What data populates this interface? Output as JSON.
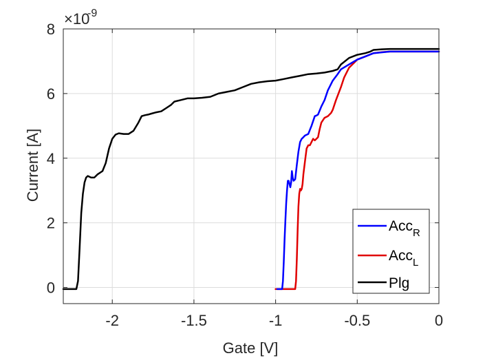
{
  "chart_data": {
    "type": "line",
    "xlabel": "Gate [V]",
    "ylabel": "Current [A]",
    "y_multiplier": "×10",
    "y_exponent": "-9",
    "xlim": [
      -2.3,
      0
    ],
    "ylim": [
      -0.5,
      8
    ],
    "xticks": [
      -2,
      -1.5,
      -1,
      -0.5,
      0
    ],
    "xtick_labels": [
      "-2",
      "-1.5",
      "-1",
      "-0.5",
      "0"
    ],
    "yticks": [
      0,
      2,
      4,
      6,
      8
    ],
    "ytick_labels": [
      "0",
      "2",
      "4",
      "6",
      "8"
    ],
    "grid": true,
    "legend_position": "bottom-right",
    "series": [
      {
        "name": "Acc",
        "subscript": "R",
        "color": "#0000ff",
        "x": [
          -0.99,
          -0.96,
          -0.955,
          -0.95,
          -0.945,
          -0.94,
          -0.935,
          -0.93,
          -0.925,
          -0.92,
          -0.915,
          -0.91,
          -0.905,
          -0.9,
          -0.895,
          -0.89,
          -0.88,
          -0.87,
          -0.86,
          -0.85,
          -0.84,
          -0.83,
          -0.82,
          -0.8,
          -0.78,
          -0.76,
          -0.75,
          -0.74,
          -0.72,
          -0.7,
          -0.68,
          -0.65,
          -0.62,
          -0.6,
          -0.55,
          -0.5,
          -0.45,
          -0.4,
          -0.3,
          -0.2,
          -0.1,
          0
        ],
        "y": [
          -0.05,
          -0.05,
          0.2,
          0.8,
          1.5,
          2.1,
          2.6,
          3.0,
          3.3,
          3.3,
          3.2,
          3.1,
          3.25,
          3.6,
          3.4,
          3.3,
          3.35,
          3.8,
          4.2,
          4.5,
          4.6,
          4.65,
          4.7,
          4.75,
          5.0,
          5.3,
          5.32,
          5.35,
          5.6,
          5.8,
          6.1,
          6.4,
          6.6,
          6.75,
          6.9,
          7.05,
          7.15,
          7.25,
          7.3,
          7.3,
          7.3,
          7.3
        ]
      },
      {
        "name": "Acc",
        "subscript": "L",
        "color": "#e00000",
        "x": [
          -1.0,
          -0.88,
          -0.875,
          -0.87,
          -0.865,
          -0.86,
          -0.855,
          -0.85,
          -0.845,
          -0.84,
          -0.835,
          -0.83,
          -0.82,
          -0.81,
          -0.8,
          -0.79,
          -0.78,
          -0.77,
          -0.76,
          -0.75,
          -0.74,
          -0.73,
          -0.72,
          -0.7,
          -0.68,
          -0.66,
          -0.65,
          -0.63,
          -0.6,
          -0.58,
          -0.55,
          -0.5,
          -0.45,
          -0.4,
          -0.35,
          -0.3,
          -0.2,
          -0.1,
          0
        ],
        "y": [
          -0.05,
          -0.05,
          0.2,
          0.9,
          1.8,
          2.5,
          2.9,
          3.05,
          3.0,
          3.05,
          3.2,
          3.5,
          3.9,
          4.3,
          4.4,
          4.4,
          4.5,
          4.6,
          4.55,
          4.6,
          4.65,
          4.9,
          5.1,
          5.25,
          5.3,
          5.4,
          5.5,
          5.8,
          6.2,
          6.5,
          6.8,
          7.05,
          7.15,
          7.25,
          7.28,
          7.3,
          7.3,
          7.3,
          7.3
        ]
      },
      {
        "name": "Plg",
        "subscript": "",
        "color": "#000000",
        "x": [
          -2.3,
          -2.22,
          -2.21,
          -2.2,
          -2.19,
          -2.18,
          -2.17,
          -2.16,
          -2.15,
          -2.13,
          -2.11,
          -2.09,
          -2.06,
          -2.04,
          -2.02,
          -2.0,
          -1.98,
          -1.96,
          -1.93,
          -1.9,
          -1.87,
          -1.84,
          -1.82,
          -1.8,
          -1.78,
          -1.76,
          -1.73,
          -1.7,
          -1.67,
          -1.64,
          -1.62,
          -1.58,
          -1.54,
          -1.5,
          -1.45,
          -1.4,
          -1.35,
          -1.3,
          -1.25,
          -1.2,
          -1.15,
          -1.1,
          -1.05,
          -1.0,
          -0.95,
          -0.9,
          -0.85,
          -0.8,
          -0.75,
          -0.7,
          -0.65,
          -0.62,
          -0.6,
          -0.55,
          -0.5,
          -0.45,
          -0.42,
          -0.4,
          -0.35,
          -0.3,
          -0.2,
          -0.1,
          0
        ],
        "y": [
          -0.05,
          -0.05,
          0.2,
          1.2,
          2.3,
          2.9,
          3.25,
          3.4,
          3.45,
          3.4,
          3.4,
          3.5,
          3.6,
          3.85,
          4.3,
          4.6,
          4.73,
          4.77,
          4.75,
          4.75,
          4.85,
          5.1,
          5.3,
          5.33,
          5.35,
          5.38,
          5.42,
          5.45,
          5.55,
          5.65,
          5.75,
          5.8,
          5.85,
          5.85,
          5.87,
          5.9,
          6.0,
          6.05,
          6.1,
          6.2,
          6.3,
          6.35,
          6.38,
          6.4,
          6.45,
          6.5,
          6.55,
          6.6,
          6.62,
          6.65,
          6.7,
          6.75,
          6.9,
          7.1,
          7.2,
          7.25,
          7.3,
          7.35,
          7.37,
          7.38,
          7.38,
          7.38,
          7.38
        ]
      }
    ]
  }
}
